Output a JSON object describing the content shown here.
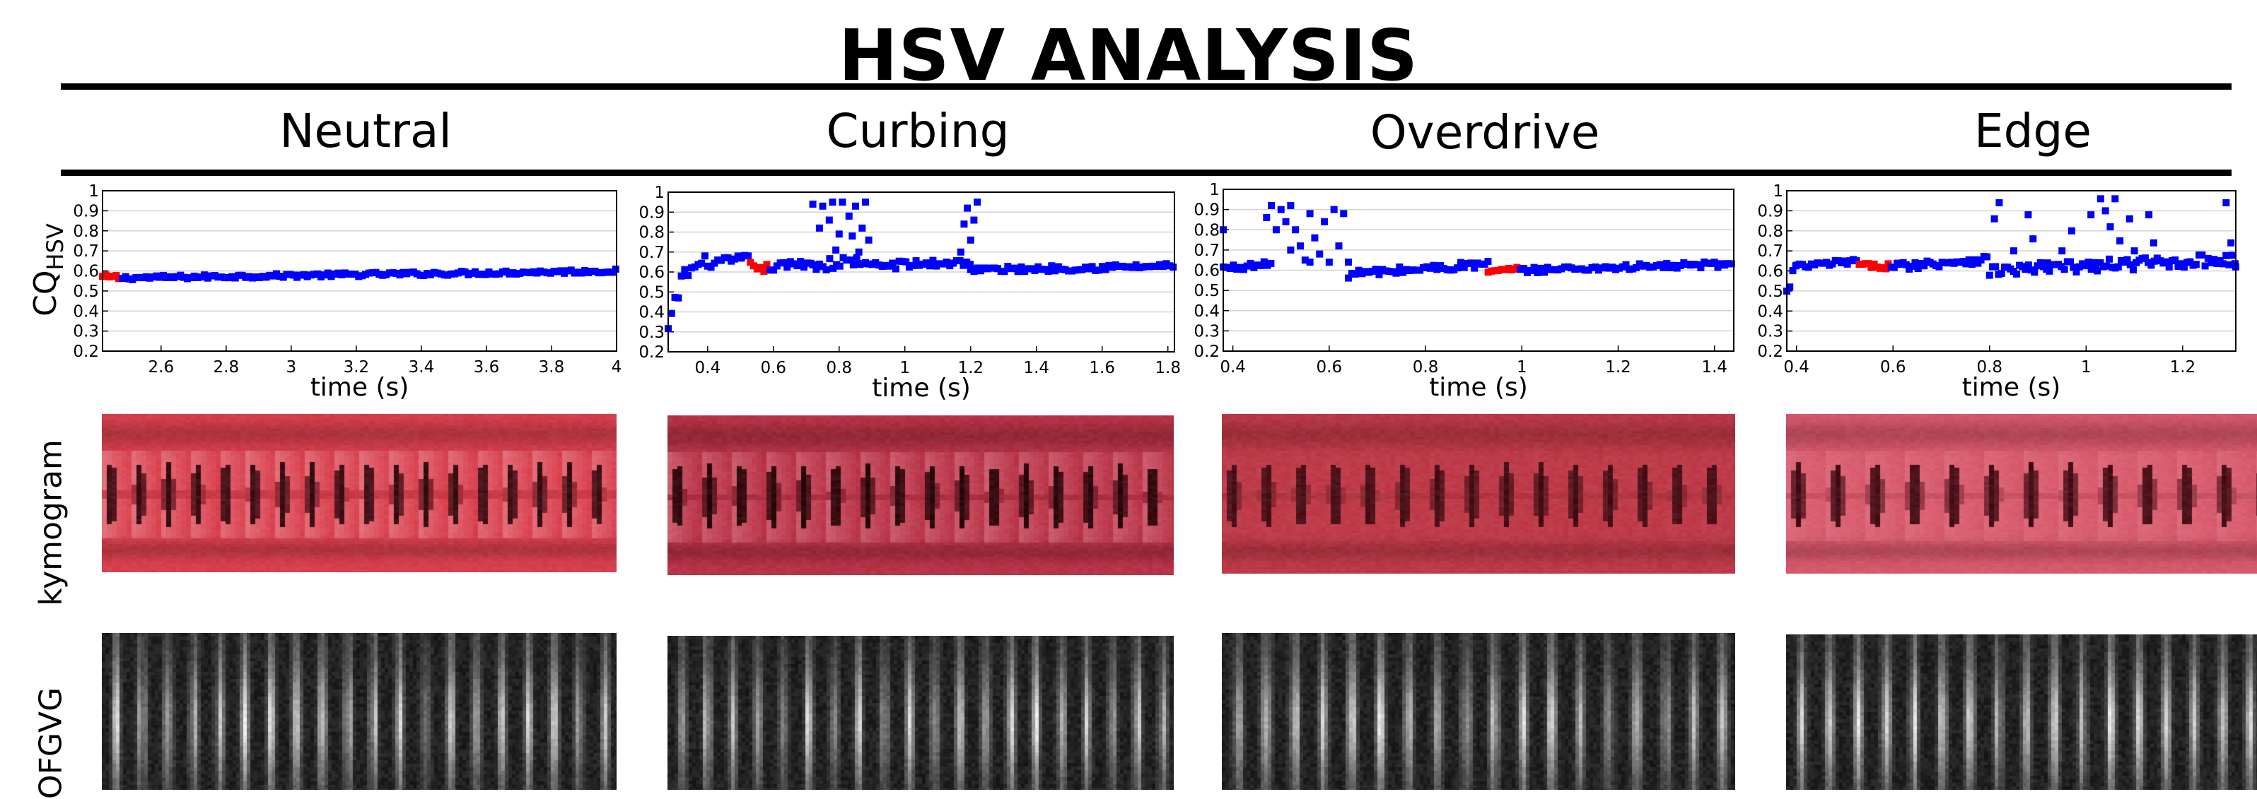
{
  "title": "HSV ANALYSIS",
  "row_labels": {
    "cq": "CQ",
    "cq_sub": "HSV",
    "kymogram": "kymogram",
    "ofgvg": "OFGVG"
  },
  "colors": {
    "points": "#0000ff",
    "highlight": "#ff0000",
    "grid": "#d3d3d3"
  },
  "chart_data": [
    {
      "type": "scatter",
      "title": "Neutral",
      "xlabel": "time (s)",
      "ylabel": "CQHSV",
      "xlim": [
        2.42,
        4.0
      ],
      "ylim": [
        0.2,
        1.0
      ],
      "xticks": [
        2.6,
        2.8,
        3,
        3.2,
        3.4,
        3.6,
        3.8,
        4
      ],
      "xticklabels": [
        "2.6",
        "2.8",
        "3",
        "3.2",
        "3.4",
        "3.6",
        "3.8",
        "4"
      ],
      "yticks": [
        0.2,
        0.3,
        0.4,
        0.5,
        0.6,
        0.7,
        0.8,
        0.9,
        1
      ],
      "yticklabels": [
        "0.2",
        "0.3",
        "0.4",
        "0.5",
        "0.6",
        "0.7",
        "0.8",
        "0.9",
        "1"
      ],
      "highlight_x": [
        2.42,
        2.47
      ],
      "segments": [
        [
          2.42,
          2.47,
          0.57,
          0.57,
          0.01
        ],
        [
          2.47,
          4.0,
          0.565,
          0.6,
          0.01
        ]
      ],
      "outliers": []
    },
    {
      "type": "scatter",
      "title": "Curbing",
      "xlabel": "time (s)",
      "ylabel": "CQHSV",
      "xlim": [
        0.28,
        1.82
      ],
      "ylim": [
        0.2,
        1.0
      ],
      "xticks": [
        0.4,
        0.6,
        0.8,
        1,
        1.2,
        1.4,
        1.6,
        1.8
      ],
      "xticklabels": [
        "0.4",
        "0.6",
        "0.8",
        "1",
        "1.2",
        "1.4",
        "1.6",
        "1.8"
      ],
      "yticks": [
        0.2,
        0.3,
        0.4,
        0.5,
        0.6,
        0.7,
        0.8,
        0.9,
        1
      ],
      "yticklabels": [
        "0.2",
        "0.3",
        "0.4",
        "0.5",
        "0.6",
        "0.7",
        "0.8",
        "0.9",
        "1"
      ],
      "highlight_x": [
        0.53,
        0.58
      ],
      "segments": [
        [
          0.28,
          0.32,
          0.3,
          0.55,
          0.05
        ],
        [
          0.32,
          0.4,
          0.58,
          0.66,
          0.03
        ],
        [
          0.4,
          0.53,
          0.64,
          0.67,
          0.02
        ],
        [
          0.53,
          0.58,
          0.64,
          0.6,
          0.01
        ],
        [
          0.58,
          0.72,
          0.62,
          0.65,
          0.02
        ],
        [
          0.72,
          0.88,
          0.63,
          0.66,
          0.03
        ],
        [
          0.88,
          1.2,
          0.63,
          0.65,
          0.02
        ],
        [
          1.2,
          1.82,
          0.61,
          0.63,
          0.015
        ]
      ],
      "outliers": [
        [
          0.72,
          0.94
        ],
        [
          0.74,
          0.82
        ],
        [
          0.75,
          0.93
        ],
        [
          0.77,
          0.86
        ],
        [
          0.78,
          0.95
        ],
        [
          0.8,
          0.79
        ],
        [
          0.81,
          0.95
        ],
        [
          0.83,
          0.88
        ],
        [
          0.84,
          0.78
        ],
        [
          0.85,
          0.93
        ],
        [
          0.87,
          0.82
        ],
        [
          0.88,
          0.95
        ],
        [
          0.89,
          0.76
        ],
        [
          0.86,
          0.7
        ],
        [
          1.18,
          0.84
        ],
        [
          1.19,
          0.92
        ],
        [
          1.21,
          0.86
        ],
        [
          1.22,
          0.95
        ],
        [
          1.2,
          0.76
        ],
        [
          1.17,
          0.7
        ],
        [
          0.79,
          0.71
        ]
      ]
    },
    {
      "type": "scatter",
      "title": "Overdrive",
      "xlabel": "time (s)",
      "ylabel": "CQHSV",
      "xlim": [
        0.38,
        1.44
      ],
      "ylim": [
        0.2,
        1.0
      ],
      "xticks": [
        0.4,
        0.6,
        0.8,
        1,
        1.2,
        1.4
      ],
      "xticklabels": [
        "0.4",
        "0.6",
        "0.8",
        "1",
        "1.2",
        "1.4"
      ],
      "yticks": [
        0.2,
        0.3,
        0.4,
        0.5,
        0.6,
        0.7,
        0.8,
        0.9,
        1
      ],
      "yticklabels": [
        "0.2",
        "0.3",
        "0.4",
        "0.5",
        "0.6",
        "0.7",
        "0.8",
        "0.9",
        "1"
      ],
      "highlight_x": [
        0.93,
        0.99
      ],
      "segments": [
        [
          0.38,
          0.48,
          0.61,
          0.63,
          0.015
        ],
        [
          0.64,
          0.93,
          0.58,
          0.63,
          0.02
        ],
        [
          0.93,
          0.99,
          0.59,
          0.61,
          0.005
        ],
        [
          0.99,
          1.44,
          0.6,
          0.63,
          0.015
        ]
      ],
      "outliers": [
        [
          0.38,
          0.8
        ],
        [
          0.47,
          0.86
        ],
        [
          0.48,
          0.92
        ],
        [
          0.49,
          0.8
        ],
        [
          0.5,
          0.9
        ],
        [
          0.51,
          0.84
        ],
        [
          0.52,
          0.92
        ],
        [
          0.53,
          0.8
        ],
        [
          0.54,
          0.72
        ],
        [
          0.55,
          0.65
        ],
        [
          0.56,
          0.88
        ],
        [
          0.57,
          0.76
        ],
        [
          0.58,
          0.68
        ],
        [
          0.59,
          0.84
        ],
        [
          0.6,
          0.64
        ],
        [
          0.61,
          0.9
        ],
        [
          0.62,
          0.72
        ],
        [
          0.63,
          0.88
        ],
        [
          0.64,
          0.64
        ],
        [
          0.52,
          0.7
        ],
        [
          0.56,
          0.64
        ]
      ]
    },
    {
      "type": "scatter",
      "title": "Edge",
      "xlabel": "time (s)",
      "ylabel": "CQHSV",
      "xlim": [
        0.38,
        1.31
      ],
      "ylim": [
        0.2,
        1.0
      ],
      "xticks": [
        0.4,
        0.6,
        0.8,
        1,
        1.2
      ],
      "xticklabels": [
        "0.4",
        "0.6",
        "0.8",
        "1",
        "1.2"
      ],
      "yticks": [
        0.2,
        0.3,
        0.4,
        0.5,
        0.6,
        0.7,
        0.8,
        0.9,
        1
      ],
      "yticklabels": [
        "0.2",
        "0.3",
        "0.4",
        "0.5",
        "0.6",
        "0.7",
        "0.8",
        "0.9",
        "1"
      ],
      "highlight_x": [
        0.53,
        0.59
      ],
      "segments": [
        [
          0.38,
          0.4,
          0.48,
          0.64,
          0.04
        ],
        [
          0.4,
          0.53,
          0.62,
          0.65,
          0.015
        ],
        [
          0.53,
          0.59,
          0.63,
          0.62,
          0.01
        ],
        [
          0.59,
          0.8,
          0.62,
          0.66,
          0.02
        ],
        [
          0.8,
          1.31,
          0.6,
          0.66,
          0.03
        ]
      ],
      "outliers": [
        [
          0.81,
          0.86
        ],
        [
          0.82,
          0.94
        ],
        [
          0.85,
          0.7
        ],
        [
          0.88,
          0.88
        ],
        [
          0.89,
          0.76
        ],
        [
          0.92,
          0.64
        ],
        [
          0.95,
          0.7
        ],
        [
          0.97,
          0.8
        ],
        [
          1.01,
          0.88
        ],
        [
          1.03,
          0.96
        ],
        [
          1.04,
          0.9
        ],
        [
          1.05,
          0.82
        ],
        [
          1.06,
          0.96
        ],
        [
          1.07,
          0.75
        ],
        [
          1.09,
          0.86
        ],
        [
          1.1,
          0.7
        ],
        [
          1.13,
          0.88
        ],
        [
          1.14,
          0.74
        ],
        [
          1.16,
          0.64
        ],
        [
          1.29,
          0.94
        ],
        [
          1.3,
          0.74
        ],
        [
          1.31,
          0.62
        ],
        [
          1.02,
          0.62
        ]
      ]
    }
  ],
  "kymograms": [
    {
      "base": "#d9404e",
      "dark": "#2a0c10",
      "bright": "#f5c6cb",
      "cycles": 18
    },
    {
      "base": "#b93448",
      "dark": "#1e0608",
      "bright": "#f0a7b3",
      "cycles": 16
    },
    {
      "base": "#bd3a48",
      "dark": "#3a0d12",
      "bright": "#d9606e",
      "cycles": 15
    },
    {
      "base": "#d65a6c",
      "dark": "#3a0a12",
      "bright": "#e98793",
      "cycles": 13
    }
  ],
  "ofgvg_cycles": [
    20,
    20,
    18,
    18
  ]
}
